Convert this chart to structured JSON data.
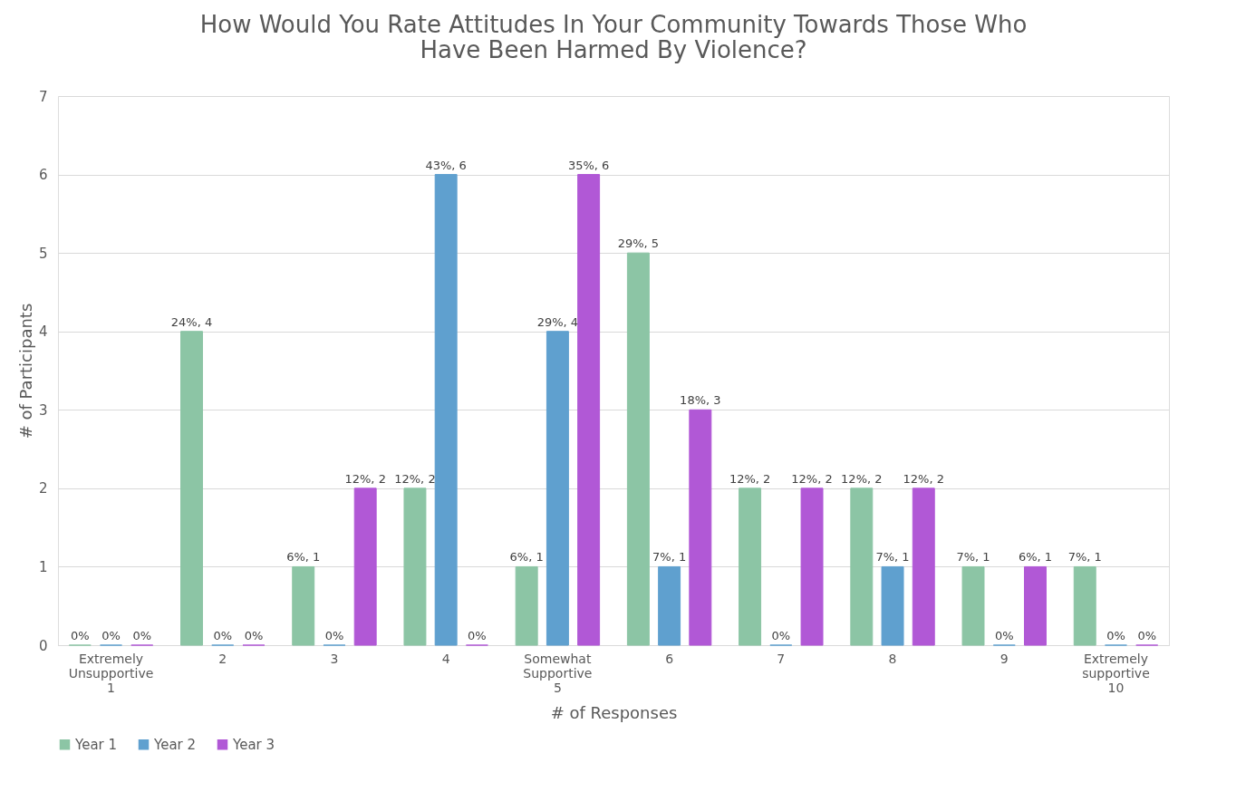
{
  "chart_data": {
    "type": "bar",
    "title": [
      "How Would You Rate Attitudes In Your Community Towards Those Who",
      "Have Been Harmed By Violence?"
    ],
    "xlabel": "# of Responses",
    "ylabel": "# of Participants",
    "categories": [
      "Extremely\nUnsupportive\n1",
      "2",
      "3",
      "4",
      "Somewhat\nSupportive\n5",
      "6",
      "7",
      "8",
      "9",
      "Extremely\nsupportive\n10"
    ],
    "series": [
      {
        "name": "Year 1",
        "color": "#8cc5a5",
        "values": [
          0,
          4,
          1,
          2,
          1,
          5,
          2,
          2,
          1,
          1
        ],
        "value_labels": [
          "0%",
          "24%, 4",
          "6%, 1",
          "12%, 2",
          "6%, 1",
          "29%, 5",
          "12%, 2",
          "12%, 2",
          "7%, 1",
          "7%, 1"
        ]
      },
      {
        "name": "Year 2",
        "color": "#5fa0cf",
        "values": [
          0,
          0,
          0,
          6,
          4,
          1,
          0,
          1,
          0,
          0
        ],
        "value_labels": [
          "0%",
          "0%",
          "0%",
          "43%, 6",
          "29%, 4",
          "7%, 1",
          "0%",
          "7%, 1",
          "0%",
          "0%"
        ]
      },
      {
        "name": "Year 3",
        "color": "#b158d6",
        "values": [
          0,
          0,
          2,
          0,
          6,
          3,
          2,
          2,
          1,
          0
        ],
        "value_labels": [
          "0%",
          "0%",
          "12%, 2",
          "0%",
          "35%, 6",
          "18%, 3",
          "12%, 2",
          "12%, 2",
          "6%, 1",
          "0%"
        ]
      }
    ],
    "ylim": [
      0,
      7
    ],
    "yticks": [
      0,
      1,
      2,
      3,
      4,
      5,
      6,
      7
    ],
    "grid": "y",
    "legend": "bottom"
  }
}
